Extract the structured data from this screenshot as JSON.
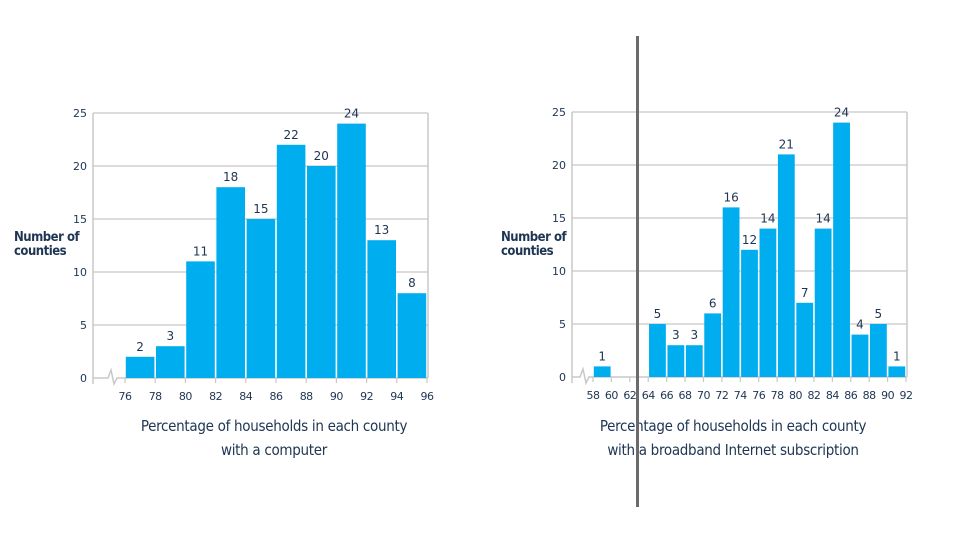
{
  "colors": {
    "bar": "#00aeef",
    "text": "#1e3553",
    "grid": "#c8c8c8",
    "divider": "#6b6b6b"
  },
  "chart_data": [
    {
      "type": "bar",
      "subtype": "histogram",
      "ylabel": "Number of counties",
      "xlabel_line1": "Percentage of households in each county",
      "xlabel_line2": "with a computer",
      "bin_edges": [
        76,
        78,
        80,
        82,
        84,
        86,
        88,
        90,
        92,
        94,
        96
      ],
      "values": [
        2,
        3,
        11,
        18,
        15,
        22,
        20,
        24,
        13,
        8
      ],
      "xticks": [
        76,
        78,
        80,
        82,
        84,
        86,
        88,
        90,
        92,
        94,
        96
      ],
      "yticks": [
        0,
        5,
        10,
        15,
        20,
        25
      ],
      "xlim": [
        76,
        96
      ],
      "ylim": [
        0,
        25
      ],
      "x_axis_break": true,
      "grid": "horizontal"
    },
    {
      "type": "bar",
      "subtype": "histogram",
      "ylabel": "Number of counties",
      "xlabel_line1": "Percentage of households in each county",
      "xlabel_line2": "with a broadband Internet subscription",
      "bin_edges": [
        58,
        60,
        62,
        64,
        66,
        68,
        70,
        72,
        74,
        76,
        78,
        80,
        82,
        84,
        86,
        88,
        90,
        92
      ],
      "values": [
        1,
        0,
        0,
        5,
        3,
        3,
        6,
        16,
        12,
        14,
        21,
        7,
        14,
        24,
        4,
        5,
        1
      ],
      "xticks": [
        58,
        60,
        62,
        64,
        66,
        68,
        70,
        72,
        74,
        76,
        78,
        80,
        82,
        84,
        86,
        88,
        90,
        92
      ],
      "yticks": [
        0,
        5,
        10,
        15,
        20,
        25
      ],
      "xlim": [
        58,
        92
      ],
      "ylim": [
        0,
        25
      ],
      "x_axis_break": true,
      "grid": "horizontal"
    }
  ]
}
